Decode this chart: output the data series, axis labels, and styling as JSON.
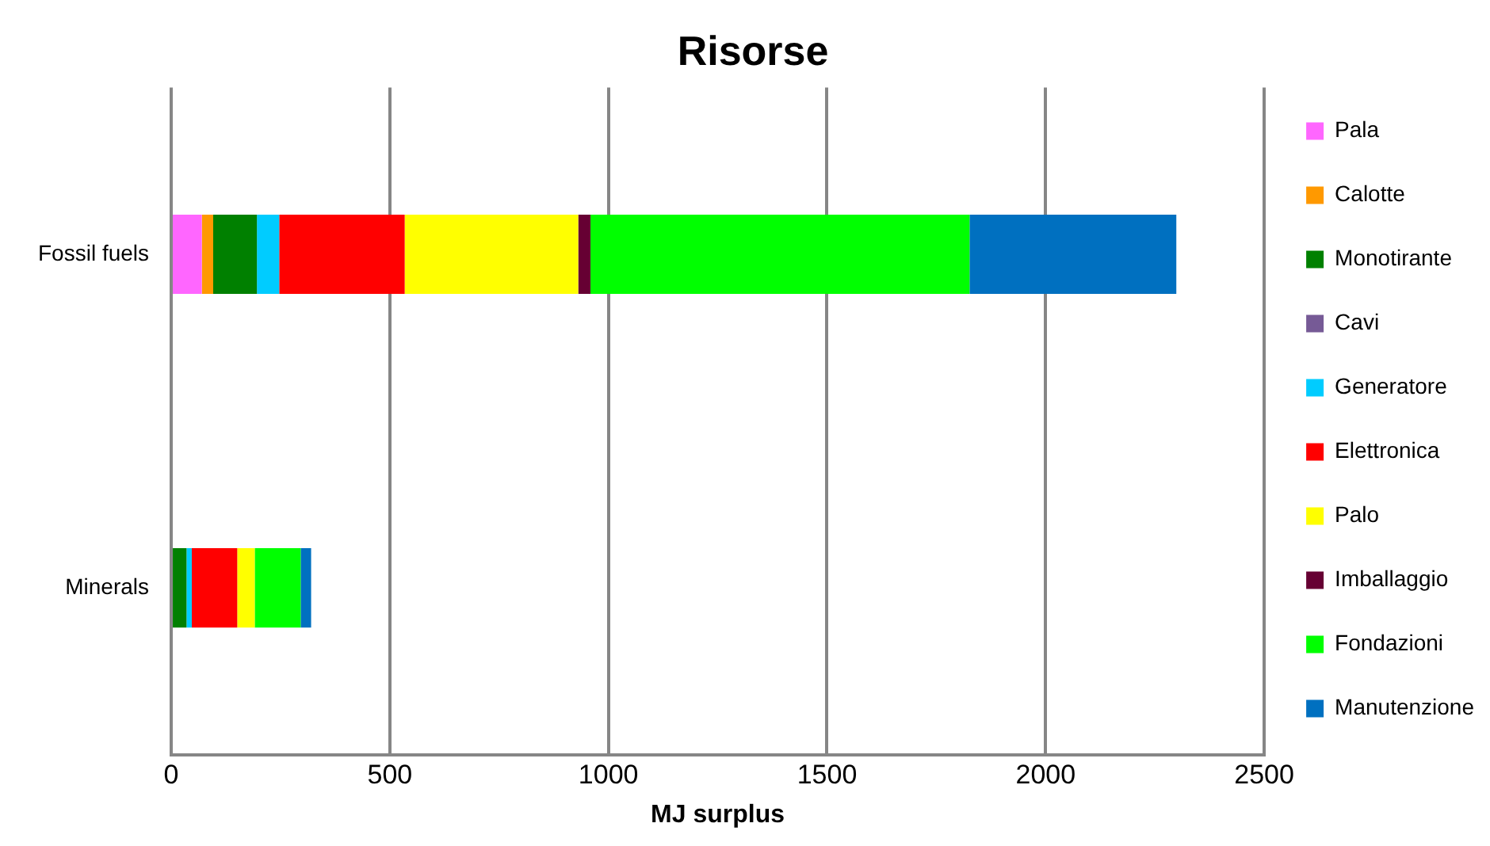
{
  "chart_data": {
    "type": "bar",
    "title": "Risorse",
    "xlabel": "MJ surplus",
    "orientation": "horizontal",
    "stacked": true,
    "categories": [
      "Fossil fuels",
      "Minerals"
    ],
    "series": [
      {
        "name": "Pala",
        "color": "#ff66ff",
        "values": [
          70,
          0
        ]
      },
      {
        "name": "Calotte",
        "color": "#ff9900",
        "values": [
          26,
          0
        ]
      },
      {
        "name": "Monotirante",
        "color": "#008000",
        "values": [
          100,
          35
        ]
      },
      {
        "name": "Cavi",
        "color": "#765a96",
        "values": [
          0,
          0
        ]
      },
      {
        "name": "Generatore",
        "color": "#00ccff",
        "values": [
          51,
          12
        ]
      },
      {
        "name": "Elettronica",
        "color": "#ff0000",
        "values": [
          287,
          104
        ]
      },
      {
        "name": "Palo",
        "color": "#ffff00",
        "values": [
          397,
          40
        ]
      },
      {
        "name": "Imballaggio",
        "color": "#660033",
        "values": [
          28,
          0
        ]
      },
      {
        "name": "Fondazioni",
        "color": "#00ff00",
        "values": [
          867,
          105
        ]
      },
      {
        "name": "Manutenzione",
        "color": "#0070c0",
        "values": [
          473,
          24
        ]
      }
    ],
    "xlim": [
      0,
      2500
    ],
    "xticks": [
      0,
      500,
      1000,
      1500,
      2000,
      2500
    ],
    "grid": "x",
    "legend": "right"
  }
}
